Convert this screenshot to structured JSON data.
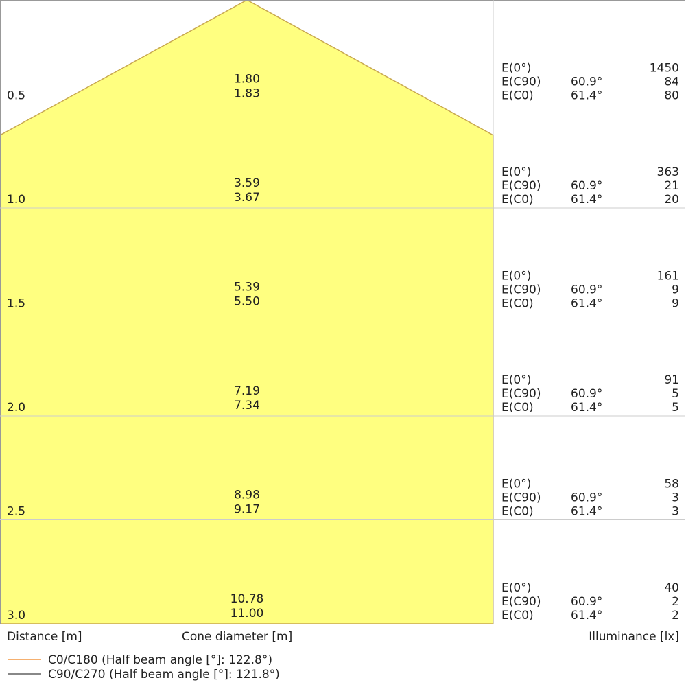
{
  "chart_data": {
    "type": "cone-diagram",
    "xlabel": "Distance [m]",
    "center_label": "Cone diameter [m]",
    "right_label": "Illuminance [lx]",
    "fill_color": "#ffff80",
    "edge_color": "#c8a850",
    "legend": [
      {
        "label": "C0/C180 (Half beam angle [°]: 122.8°)",
        "color": "#f5b070"
      },
      {
        "label": "C90/C270 (Half beam angle [°]: 121.8°)",
        "color": "#888888"
      }
    ],
    "rows": [
      {
        "distance": "0.5",
        "d_c90": "1.80",
        "d_c0": "1.83",
        "e0_label": "E(0°)",
        "e0": "1450",
        "ec90_label": "E(C90)",
        "ec90_angle": "60.9°",
        "ec90": "84",
        "ec0_label": "E(C0)",
        "ec0_angle": "61.4°",
        "ec0": "80"
      },
      {
        "distance": "1.0",
        "d_c90": "3.59",
        "d_c0": "3.67",
        "e0_label": "E(0°)",
        "e0": "363",
        "ec90_label": "E(C90)",
        "ec90_angle": "60.9°",
        "ec90": "21",
        "ec0_label": "E(C0)",
        "ec0_angle": "61.4°",
        "ec0": "20"
      },
      {
        "distance": "1.5",
        "d_c90": "5.39",
        "d_c0": "5.50",
        "e0_label": "E(0°)",
        "e0": "161",
        "ec90_label": "E(C90)",
        "ec90_angle": "60.9°",
        "ec90": "9",
        "ec0_label": "E(C0)",
        "ec0_angle": "61.4°",
        "ec0": "9"
      },
      {
        "distance": "2.0",
        "d_c90": "7.19",
        "d_c0": "7.34",
        "e0_label": "E(0°)",
        "e0": "91",
        "ec90_label": "E(C90)",
        "ec90_angle": "60.9°",
        "ec90": "5",
        "ec0_label": "E(C0)",
        "ec0_angle": "61.4°",
        "ec0": "5"
      },
      {
        "distance": "2.5",
        "d_c90": "8.98",
        "d_c0": "9.17",
        "e0_label": "E(0°)",
        "e0": "58",
        "ec90_label": "E(C90)",
        "ec90_angle": "60.9°",
        "ec90": "3",
        "ec0_label": "E(C0)",
        "ec0_angle": "61.4°",
        "ec0": "3"
      },
      {
        "distance": "3.0",
        "d_c90": "10.78",
        "d_c0": "11.00",
        "e0_label": "E(0°)",
        "e0": "40",
        "ec90_label": "E(C90)",
        "ec90_angle": "60.9°",
        "ec90": "2",
        "ec0_label": "E(C0)",
        "ec0_angle": "61.4°",
        "ec0": "2"
      }
    ]
  }
}
